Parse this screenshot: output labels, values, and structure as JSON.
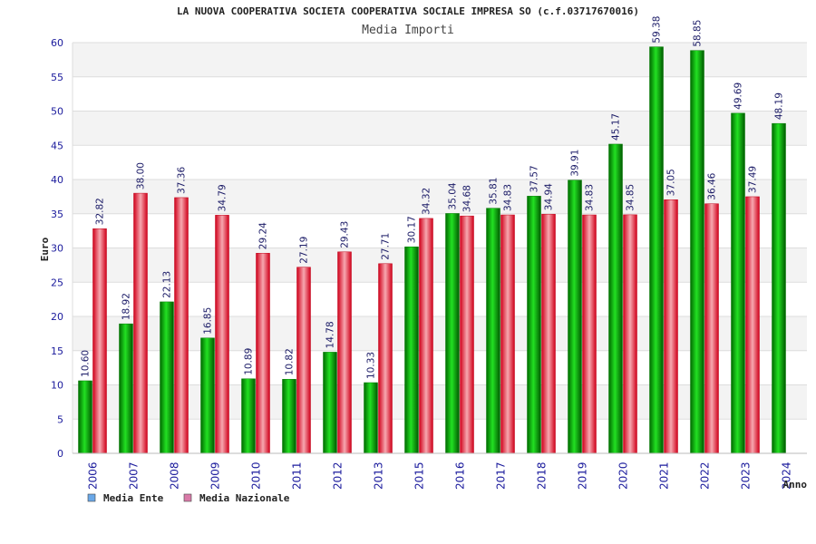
{
  "chart_data": {
    "type": "bar",
    "title": "LA NUOVA COOPERATIVA SOCIETA COOPERATIVA SOCIALE IMPRESA SO (c.f.03717670016)",
    "subtitle": "Media Importi",
    "xlabel": "Anno",
    "ylabel": "Euro",
    "ylim": [
      0,
      60
    ],
    "yticks": [
      0,
      5,
      10,
      15,
      20,
      25,
      30,
      35,
      40,
      45,
      50,
      55,
      60
    ],
    "grid": true,
    "legend_position": "bottom-left",
    "categories": [
      "2006",
      "2007",
      "2008",
      "2009",
      "2010",
      "2011",
      "2012",
      "2013",
      "2015",
      "2016",
      "2017",
      "2018",
      "2019",
      "2020",
      "2021",
      "2022",
      "2023",
      "2024"
    ],
    "series": [
      {
        "name": "Media Ente",
        "color": "#00b000",
        "legend_color": "#6aa8e8",
        "values": [
          10.6,
          18.92,
          22.13,
          16.85,
          10.89,
          10.82,
          14.78,
          10.33,
          30.17,
          35.04,
          35.81,
          37.57,
          39.91,
          45.17,
          59.38,
          58.85,
          49.69,
          48.19
        ],
        "labels": [
          "10.60",
          "18.92",
          "22.13",
          "16.85",
          "10.89",
          "10.82",
          "14.78",
          "10.33",
          "30.17",
          "35.04",
          "35.81",
          "37.57",
          "39.91",
          "45.17",
          "59.38",
          "58.85",
          "49.69",
          "48.19"
        ]
      },
      {
        "name": "Media Nazionale",
        "color": "#e8303a",
        "legend_color": "#d97aa8",
        "values": [
          32.82,
          38.0,
          37.36,
          34.79,
          29.24,
          27.19,
          29.43,
          27.71,
          34.32,
          34.68,
          34.83,
          34.94,
          34.83,
          34.85,
          37.05,
          36.46,
          37.49,
          null
        ],
        "labels": [
          "32.82",
          "38.00",
          "37.36",
          "34.79",
          "29.24",
          "27.19",
          "29.43",
          "27.71",
          "34.32",
          "34.68",
          "34.83",
          "34.94",
          "34.83",
          "34.85",
          "37.05",
          "36.46",
          "37.49",
          ""
        ]
      }
    ]
  }
}
